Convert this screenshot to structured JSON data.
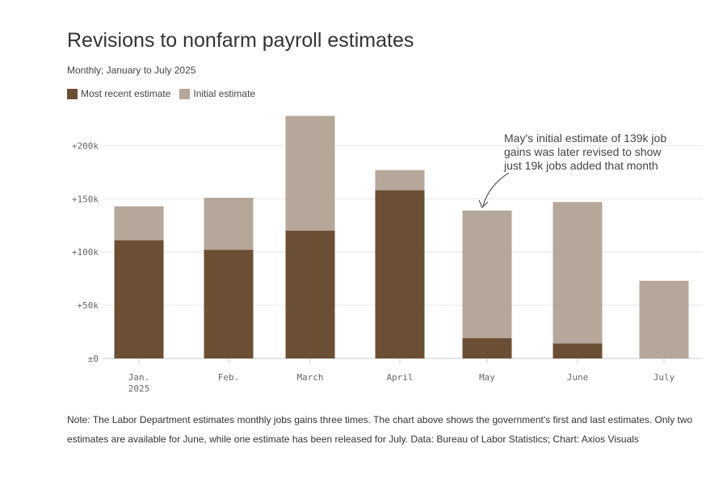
{
  "title": "Revisions to nonfarm payroll estimates",
  "subtitle": "Monthly; January to July 2025",
  "legend": {
    "recent_label": "Most recent estimate",
    "initial_label": "Initial estimate"
  },
  "colors": {
    "recent": "#6b4f35",
    "initial": "#b5a799",
    "grid": "#e6e6e6",
    "axis": "#cccccc"
  },
  "chart_data": {
    "type": "bar",
    "categories": [
      "Jan.",
      "Feb.",
      "March",
      "April",
      "May",
      "June",
      "July"
    ],
    "category_sublabels": [
      "2025",
      "",
      "",
      "",
      "",
      "",
      ""
    ],
    "series": [
      {
        "name": "Most recent estimate",
        "values": [
          111,
          102,
          120,
          158,
          19,
          14,
          0
        ]
      },
      {
        "name": "Initial estimate",
        "values": [
          143,
          151,
          228,
          177,
          139,
          147,
          73
        ]
      }
    ],
    "y_ticks": [
      0,
      50,
      100,
      150,
      200
    ],
    "y_tick_labels": [
      "±0",
      "+50k",
      "+100k",
      "+150k",
      "+200k"
    ],
    "ylim": [
      0,
      230
    ],
    "grid": true,
    "legend_position": "top-left",
    "annotation": {
      "category": "May",
      "lines": [
        "May's initial estimate of 139k job",
        "gains was later revised to show",
        "just 19k jobs added that month"
      ]
    }
  },
  "note": "Note: The Labor Department estimates monthly jobs gains three times. The chart above shows the government's first and last estimates. Only two estimates are available for June, while one estimate has been released for July. Data: Bureau of Labor Statistics; Chart: Axios Visuals"
}
